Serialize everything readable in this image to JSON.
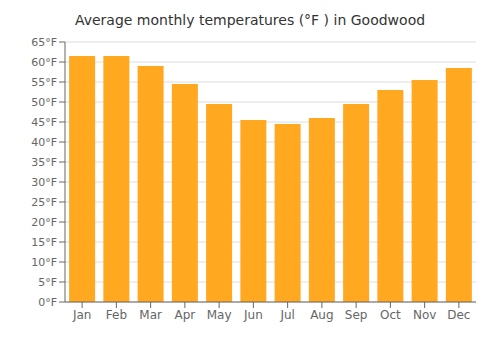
{
  "chart_data": {
    "type": "bar",
    "title": "Average monthly temperatures (°F ) in Goodwood",
    "categories": [
      "Jan",
      "Feb",
      "Mar",
      "Apr",
      "May",
      "Jun",
      "Jul",
      "Aug",
      "Sep",
      "Oct",
      "Nov",
      "Dec"
    ],
    "values": [
      61.5,
      61.5,
      59.0,
      54.5,
      49.5,
      45.5,
      44.5,
      46.0,
      49.5,
      53.0,
      55.5,
      58.5
    ],
    "color": "#FFA820",
    "ylim": [
      0,
      65
    ],
    "yticks": [
      {
        "value": 0,
        "label": "0°F"
      },
      {
        "value": 5,
        "label": "5°F"
      },
      {
        "value": 10,
        "label": "10°F"
      },
      {
        "value": 15,
        "label": "15°F"
      },
      {
        "value": 20,
        "label": "20°F"
      },
      {
        "value": 25,
        "label": "25°F"
      },
      {
        "value": 30,
        "label": "30°F"
      },
      {
        "value": 35,
        "label": "35°F"
      },
      {
        "value": 40,
        "label": "40°F"
      },
      {
        "value": 45,
        "label": "45°F"
      },
      {
        "value": 50,
        "label": "50°F"
      },
      {
        "value": 55,
        "label": "55°F"
      },
      {
        "value": 60,
        "label": "60°F"
      },
      {
        "value": 65,
        "label": "65°F"
      }
    ],
    "grid": true
  }
}
